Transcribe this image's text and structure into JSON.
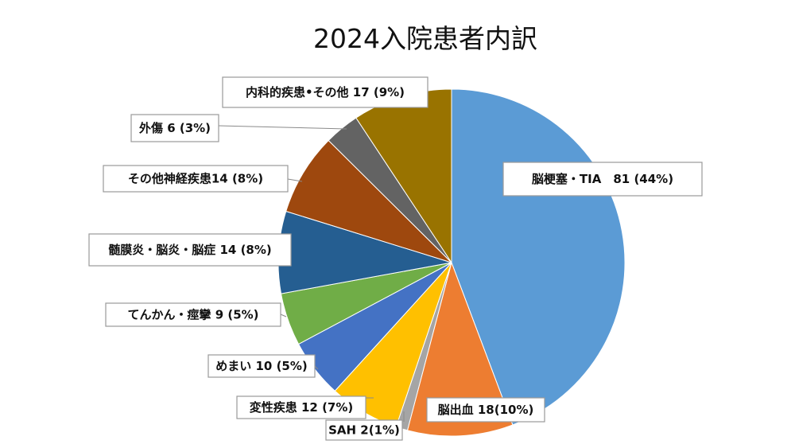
{
  "chart_data": {
    "type": "pie",
    "title": "2024入院患者内訳",
    "start_angle_deg": 0,
    "direction": "clockwise",
    "slices": [
      {
        "label": "脳梗塞・TIA",
        "value": 81,
        "display": "脳梗塞・TIA　81 (44%)",
        "color": "#5B9BD5"
      },
      {
        "label": "脳出血",
        "value": 18,
        "display": "脳出血 18(10%)",
        "color": "#ED7D31"
      },
      {
        "label": "SAH",
        "value": 2,
        "display": "SAH 2(1%)",
        "color": "#A5A5A5"
      },
      {
        "label": "変性疾患",
        "value": 12,
        "display": "変性疾患 12 (7%)",
        "color": "#FFC000"
      },
      {
        "label": "めまい",
        "value": 10,
        "display": "めまい 10 (5%)",
        "color": "#4472C4"
      },
      {
        "label": "てんかん・痙攣",
        "value": 9,
        "display": "てんかん・痙攣 9 (5%)",
        "color": "#70AD47"
      },
      {
        "label": "髄膜炎・脳炎・脳症",
        "value": 14,
        "display": "髄膜炎・脳炎・脳症 14 (8%)",
        "color": "#255E91"
      },
      {
        "label": "その他神経疾患",
        "value": 14,
        "display": "その他神経疾患14 (8%)",
        "color": "#9E480E"
      },
      {
        "label": "外傷",
        "value": 6,
        "display": "外傷 6 (3%)",
        "color": "#636363"
      },
      {
        "label": "内科的疾患・その他",
        "value": 17,
        "display": "内科的疾患•その他 17 (9%)",
        "color": "#997300"
      }
    ]
  }
}
